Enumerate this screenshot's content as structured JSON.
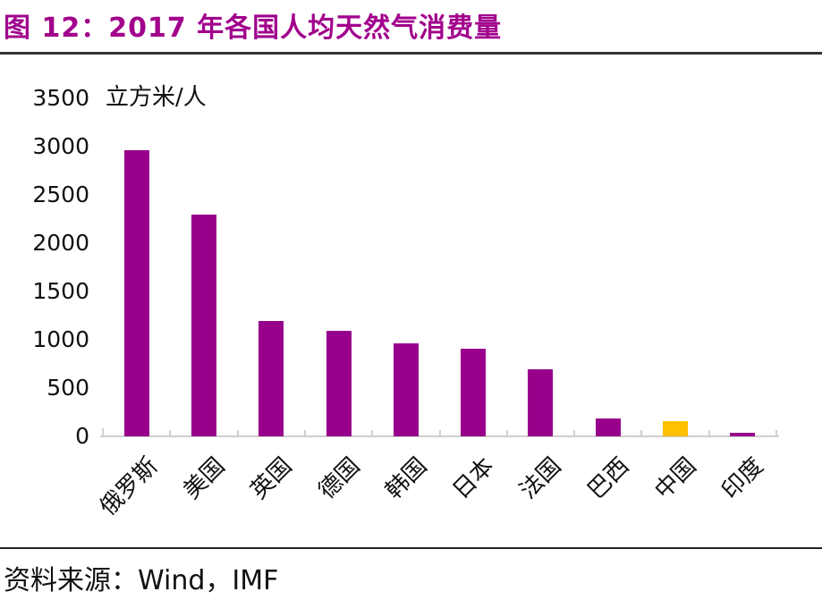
{
  "header": {
    "title": "图 12：2017 年各国人均天然气消费量"
  },
  "footer": {
    "source": "资料来源：Wind，IMF"
  },
  "colors": {
    "title": "#A1008C",
    "bar": "#98008C",
    "highlight": "#FFC000",
    "axis": "#D0CECE",
    "text": "#111111",
    "title_rule": "#333333",
    "footer_rule": "#222222"
  },
  "chart_data": {
    "type": "bar",
    "title": "2017 年各国人均天然气消费量",
    "unit_label": "立方米/人",
    "xlabel": "",
    "ylabel": "立方米/人",
    "categories": [
      "俄罗斯",
      "美国",
      "英国",
      "德国",
      "韩国",
      "日本",
      "法国",
      "巴西",
      "中国",
      "印度"
    ],
    "values": [
      2960,
      2300,
      1190,
      1090,
      960,
      910,
      690,
      185,
      160,
      40
    ],
    "ylim": [
      0,
      3500
    ],
    "yticks": [
      0,
      500,
      1000,
      1500,
      2000,
      2500,
      3000,
      3500
    ],
    "grid": false,
    "legend": "none",
    "bar_color": "#98008C",
    "highlight_color": "#FFC000",
    "highlight_index": 8,
    "highlight_category": "中国"
  }
}
